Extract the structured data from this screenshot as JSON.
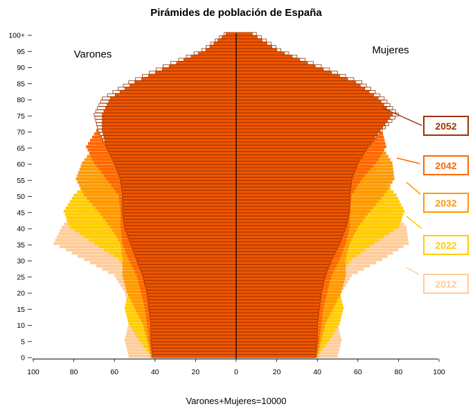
{
  "chart_data": {
    "type": "bar",
    "orientation": "horizontal",
    "title": "Pirámides de población de España",
    "xlabel": "Varones+Mujeres=10000",
    "left_label": "Varones",
    "right_label": "Mujeres",
    "xlim": [
      -100,
      100
    ],
    "x_ticks": [
      -100,
      -80,
      -60,
      -40,
      -20,
      0,
      20,
      40,
      60,
      80,
      100
    ],
    "x_tick_labels": [
      "100",
      "80",
      "60",
      "40",
      "20",
      "0",
      "20",
      "40",
      "60",
      "80",
      "100"
    ],
    "y_tick_labels": [
      "0",
      "5",
      "10",
      "15",
      "20",
      "25",
      "30",
      "35",
      "40",
      "45",
      "50",
      "55",
      "60",
      "65",
      "70",
      "75",
      "80",
      "85",
      "90",
      "95",
      "100+"
    ],
    "y_tick_ages": [
      0,
      5,
      10,
      15,
      20,
      25,
      30,
      35,
      40,
      45,
      50,
      55,
      60,
      65,
      70,
      75,
      80,
      85,
      90,
      95,
      100
    ],
    "age_control_points": [
      0,
      5,
      10,
      15,
      20,
      25,
      30,
      35,
      40,
      45,
      50,
      55,
      60,
      65,
      70,
      75,
      80,
      85,
      90,
      95,
      100
    ],
    "series": [
      {
        "name": "2012",
        "color": "#ffcc99",
        "men": [
          53,
          55,
          53,
          53,
          55,
          60,
          75,
          90,
          86,
          80,
          72,
          64,
          57,
          52,
          45,
          38,
          30,
          22,
          14,
          6,
          2
        ],
        "women": [
          50,
          52,
          50,
          50,
          52,
          57,
          72,
          85,
          84,
          78,
          71,
          64,
          58,
          54,
          50,
          44,
          37,
          28,
          18,
          8,
          3
        ]
      },
      {
        "name": "2022",
        "color": "#ffcc00",
        "men": [
          42,
          48,
          53,
          55,
          53,
          52,
          58,
          70,
          82,
          85,
          80,
          72,
          64,
          58,
          52,
          45,
          36,
          27,
          17,
          8,
          3
        ],
        "women": [
          40,
          46,
          51,
          53,
          51,
          50,
          57,
          68,
          80,
          83,
          79,
          72,
          66,
          62,
          57,
          51,
          43,
          33,
          22,
          10,
          4
        ]
      },
      {
        "name": "2032",
        "color": "#ff9900",
        "men": [
          42,
          44,
          46,
          50,
          54,
          56,
          56,
          57,
          62,
          68,
          75,
          79,
          76,
          70,
          62,
          53,
          42,
          31,
          20,
          9,
          3
        ],
        "women": [
          40,
          42,
          44,
          48,
          52,
          54,
          54,
          56,
          60,
          66,
          73,
          78,
          77,
          72,
          66,
          58,
          48,
          37,
          25,
          12,
          4
        ]
      },
      {
        "name": "2042",
        "color": "#ff6600",
        "men": [
          42,
          43,
          44,
          45,
          47,
          49,
          53,
          56,
          57,
          57,
          58,
          64,
          70,
          74,
          69,
          61,
          49,
          36,
          23,
          11,
          4
        ],
        "women": [
          40,
          41,
          42,
          43,
          45,
          47,
          51,
          54,
          56,
          56,
          57,
          62,
          69,
          74,
          72,
          66,
          55,
          42,
          28,
          14,
          5
        ]
      },
      {
        "name": "2052",
        "color": "#ffffff",
        "stroke": "#993300",
        "men": [
          41,
          42,
          42,
          43,
          44,
          46,
          49,
          52,
          55,
          56,
          56,
          57,
          60,
          64,
          68,
          70,
          66,
          53,
          36,
          17,
          6
        ],
        "women": [
          39,
          40,
          40,
          41,
          42,
          44,
          47,
          51,
          54,
          56,
          56,
          57,
          60,
          65,
          72,
          80,
          73,
          62,
          42,
          22,
          10
        ]
      }
    ],
    "overlay_bar": {
      "color": "#ee5500",
      "stroke": "#993300",
      "men": [
        41,
        42,
        42,
        43,
        44,
        46,
        49,
        52,
        55,
        56,
        56,
        57,
        60,
        64,
        66,
        66,
        62,
        50,
        33,
        15,
        5
      ],
      "women": [
        39,
        40,
        40,
        41,
        42,
        44,
        47,
        51,
        54,
        56,
        56,
        57,
        60,
        65,
        71,
        77,
        70,
        59,
        39,
        20,
        8
      ]
    },
    "legend": [
      {
        "label": "2052",
        "color": "#993300",
        "border": "#993300"
      },
      {
        "label": "2042",
        "color": "#ff6600",
        "border": "#ff6600"
      },
      {
        "label": "2032",
        "color": "#ff9900",
        "border": "#ff9900"
      },
      {
        "label": "2022",
        "color": "#ffcc00",
        "border": "#ffcc00"
      },
      {
        "label": "2012",
        "color": "#ffcc99",
        "border": "#ffcc99"
      }
    ],
    "legend_placement": "right",
    "grid": false
  }
}
